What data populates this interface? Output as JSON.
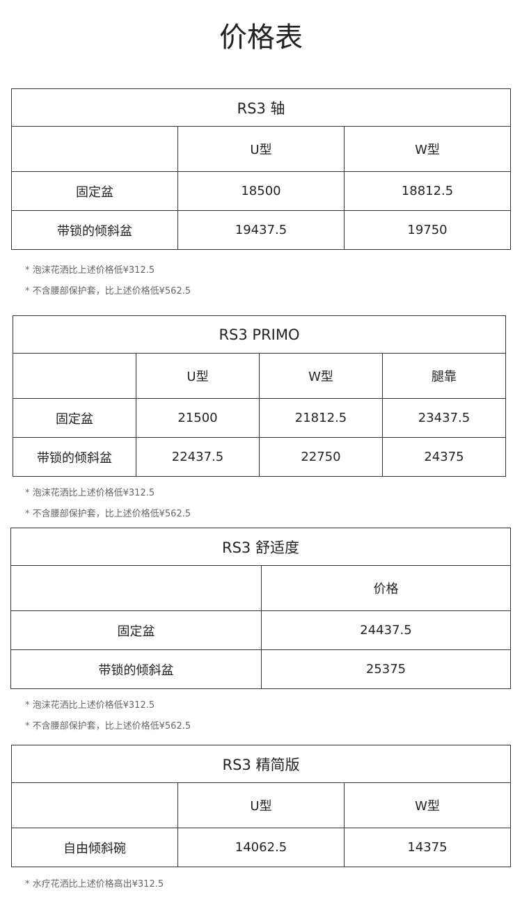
{
  "title": "价格表",
  "sections": [
    {
      "title": "RS3 轴",
      "headers": [
        "",
        "U型",
        "W型"
      ],
      "rows": [
        [
          "固定盆",
          "18500",
          "18812.5"
        ],
        [
          "带锁的倾斜盆",
          "19437.5",
          "19750"
        ]
      ],
      "notes": [
        "* 泡沫花洒比上述价格低¥312.5",
        "* 不含腰部保护套，比上述价格低¥562.5"
      ]
    },
    {
      "title": "RS3 PRIMO",
      "headers": [
        "",
        "U型",
        "W型",
        "腿靠"
      ],
      "rows": [
        [
          "固定盆",
          "21500",
          "21812.5",
          "23437.5"
        ],
        [
          "带锁的倾斜盆",
          "22437.5",
          "22750",
          "24375"
        ]
      ],
      "notes": [
        "* 泡沫花洒比上述价格低¥312.5",
        "* 不含腰部保护套，比上述价格低¥562.5"
      ]
    },
    {
      "title": "RS3 舒适度",
      "headers": [
        "",
        "价格"
      ],
      "rows": [
        [
          "固定盆",
          "24437.5"
        ],
        [
          "带锁的倾斜盆",
          "25375"
        ]
      ],
      "notes": [
        "* 泡沫花洒比上述价格低¥312.5",
        "* 不含腰部保护套，比上述价格低¥562.5"
      ]
    },
    {
      "title": "RS3 精简版",
      "headers": [
        "",
        "U型",
        "W型"
      ],
      "rows": [
        [
          "自由倾斜碗",
          "14062.5",
          "14375"
        ]
      ],
      "notes": [
        "* 水疗花洒比上述价格高出¥312.5"
      ]
    }
  ]
}
